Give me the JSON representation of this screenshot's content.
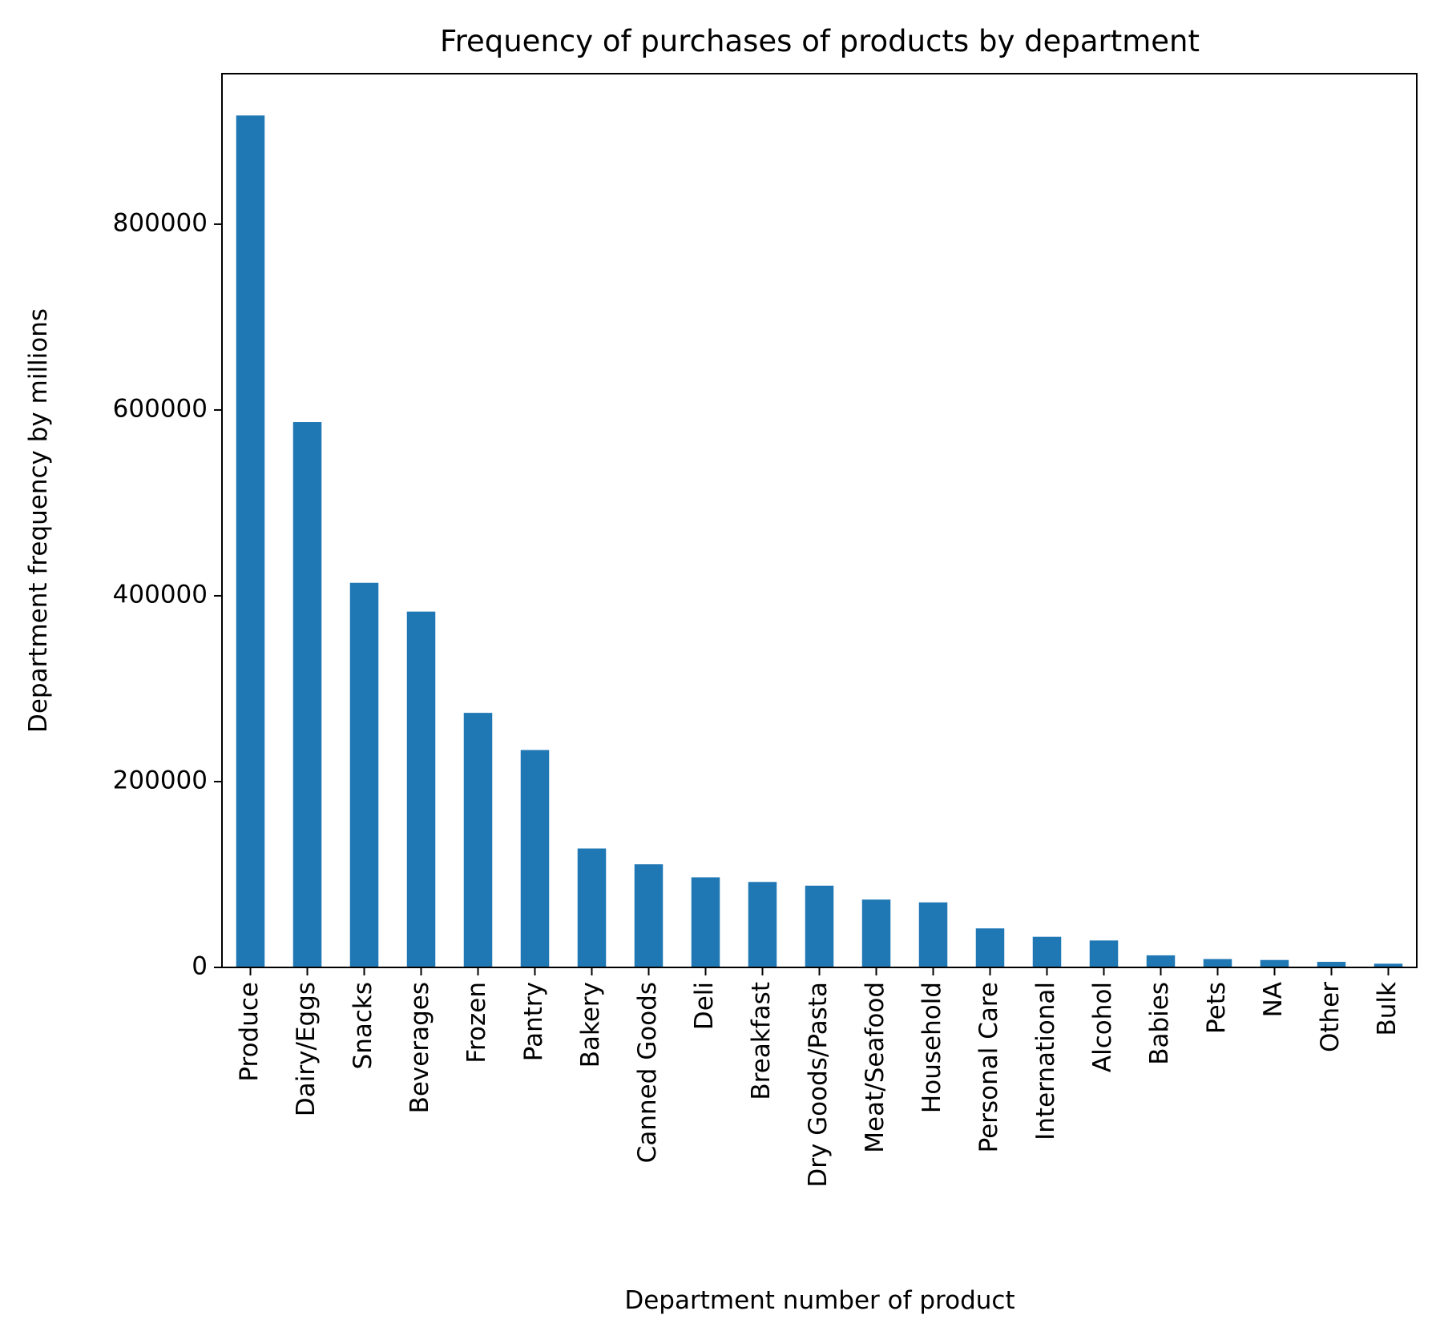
{
  "chart_data": {
    "type": "bar",
    "title": "Frequency of purchases of products by department",
    "xlabel": "Department number of product",
    "ylabel": "Department frequency by millions",
    "categories": [
      "Produce",
      "Dairy/Eggs",
      "Snacks",
      "Beverages",
      "Frozen",
      "Pantry",
      "Bakery",
      "Canned Goods",
      "Deli",
      "Breakfast",
      "Dry Goods/Pasta",
      "Meat/Seafood",
      "Household",
      "Personal Care",
      "International",
      "Alcohol",
      "Babies",
      "Pets",
      "NA",
      "Other",
      "Bulk"
    ],
    "values": [
      917000,
      587000,
      414000,
      383000,
      274000,
      234000,
      128000,
      111000,
      97000,
      92000,
      88000,
      73000,
      70000,
      42000,
      33000,
      29000,
      13000,
      9000,
      8000,
      6000,
      4000
    ],
    "ylim": [
      0,
      962000
    ],
    "yticks": [
      0,
      200000,
      400000,
      600000,
      800000
    ],
    "ytick_labels": [
      "0",
      "200000",
      "400000",
      "600000",
      "800000"
    ],
    "grid": false,
    "bar_color": "#1f77b4"
  }
}
